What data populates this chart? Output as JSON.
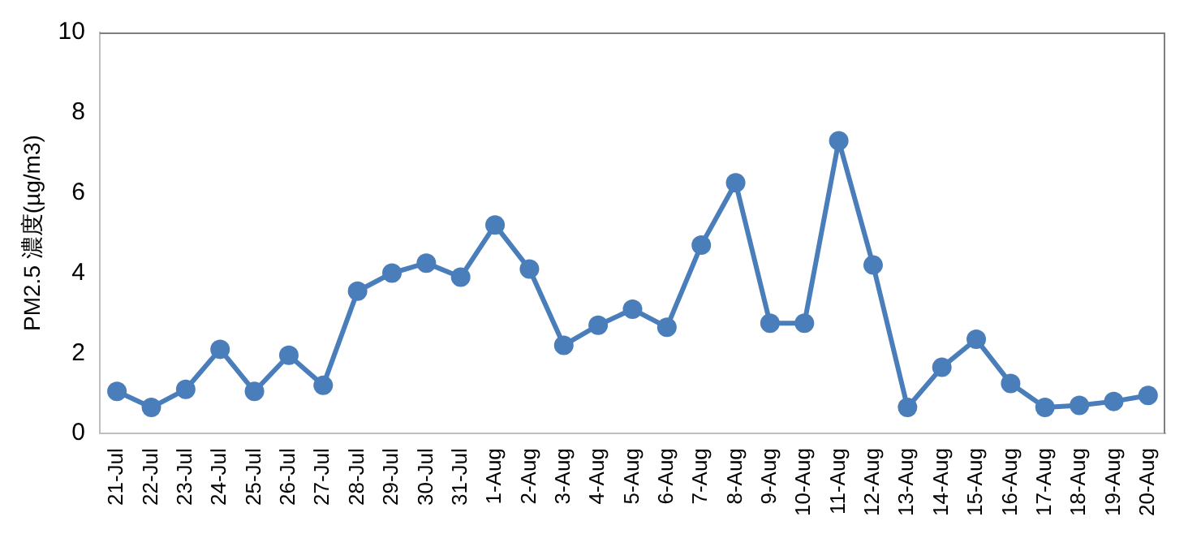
{
  "chart_data": {
    "type": "line",
    "ylabel": "PM2.5 濃度(µg/m3)",
    "categories": [
      "21-Jul",
      "22-Jul",
      "23-Jul",
      "24-Jul",
      "25-Jul",
      "26-Jul",
      "27-Jul",
      "28-Jul",
      "29-Jul",
      "30-Jul",
      "31-Jul",
      "1-Aug",
      "2-Aug",
      "3-Aug",
      "4-Aug",
      "5-Aug",
      "6-Aug",
      "7-Aug",
      "8-Aug",
      "9-Aug",
      "10-Aug",
      "11-Aug",
      "12-Aug",
      "13-Aug",
      "14-Aug",
      "15-Aug",
      "16-Aug",
      "17-Aug",
      "18-Aug",
      "19-Aug",
      "20-Aug"
    ],
    "series": [
      {
        "color": "#4a7ebb",
        "values": [
          1.05,
          0.65,
          1.1,
          2.1,
          1.05,
          1.95,
          1.2,
          3.55,
          4.0,
          4.25,
          3.9,
          5.2,
          4.1,
          2.2,
          2.7,
          3.1,
          2.65,
          4.7,
          6.25,
          2.75,
          2.75,
          7.3,
          4.2,
          0.65,
          1.65,
          2.35,
          1.25,
          0.65,
          0.7,
          0.8,
          0.95
        ]
      }
    ],
    "ylim": [
      0,
      10
    ],
    "yticks": [
      0,
      2,
      4,
      6,
      8,
      10
    ],
    "grid": false,
    "legend": false,
    "marker": "circle",
    "line_style": "solid"
  }
}
